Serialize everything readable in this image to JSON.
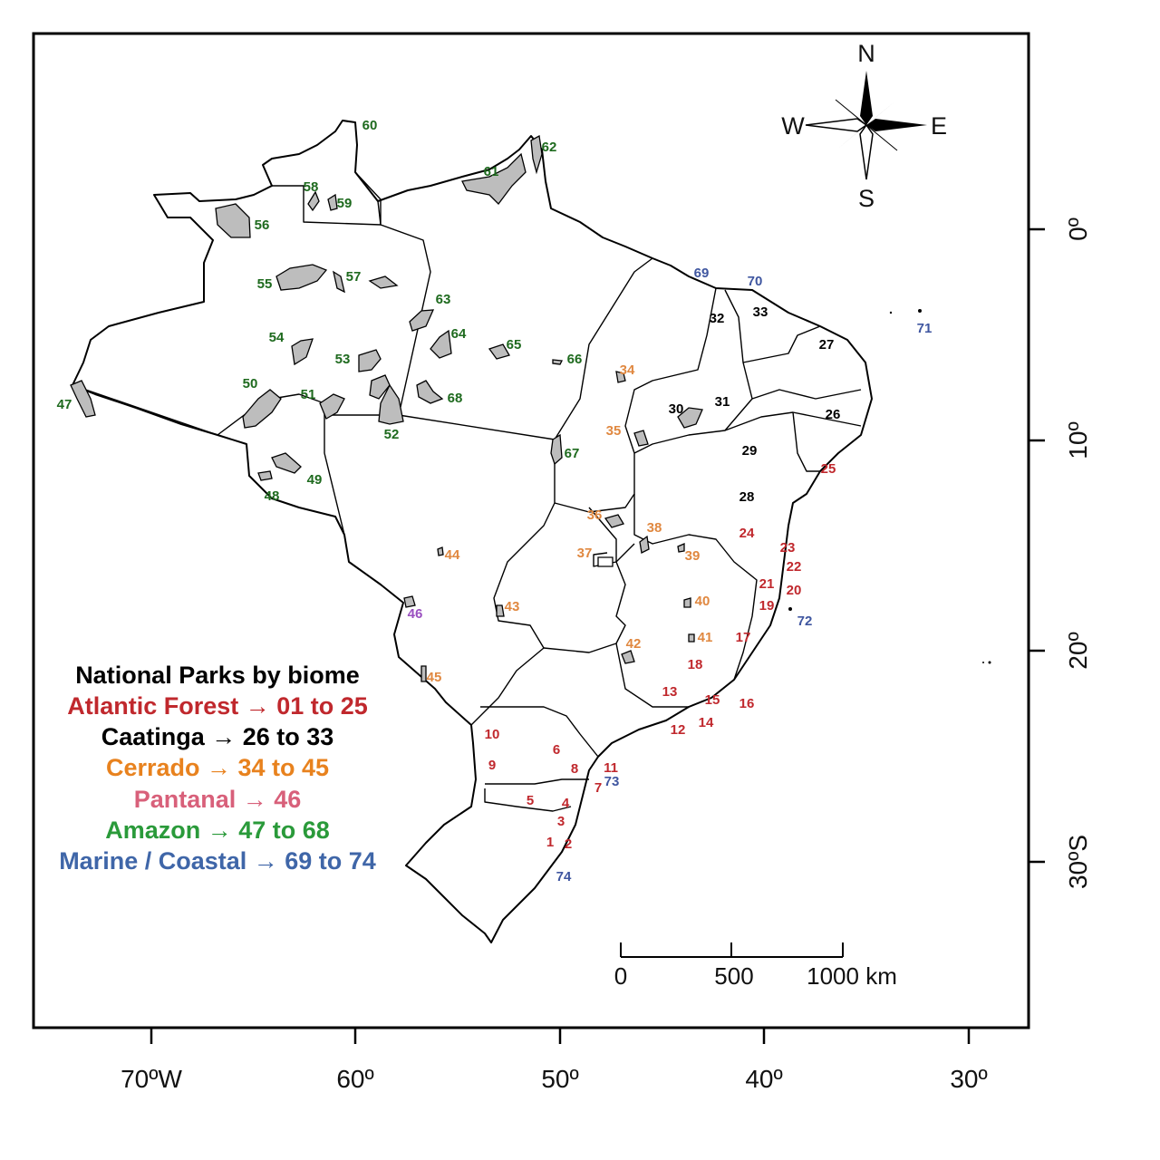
{
  "map": {
    "x_ticks": [
      "70ºW",
      "60º",
      "50º",
      "40º",
      "30º"
    ],
    "y_ticks": [
      "0º",
      "10º",
      "20º",
      "30ºS"
    ],
    "compass": {
      "n": "N",
      "s": "S",
      "e": "E",
      "w": "W"
    },
    "scale": {
      "labels": [
        "0",
        "500",
        "1000 km"
      ]
    },
    "legend": {
      "title": "National Parks by biome",
      "entries": [
        {
          "text": "Atlantic Forest → 01 to 25",
          "color": "#c0282d"
        },
        {
          "text": "Caatinga → 26 to 33",
          "color": "#000000"
        },
        {
          "text": "Cerrado → 34 to 45",
          "color": "#e8821e"
        },
        {
          "text": "Pantanal → 46",
          "color": "#d8607a"
        },
        {
          "text": "Amazon → 47 to 68",
          "color": "#2a9a3a"
        },
        {
          "text": "Marine / Coastal → 69 to 74",
          "color": "#3f66a8"
        }
      ]
    },
    "label_colors": {
      "atlantic": "#c0282d",
      "caatinga": "#000000",
      "cerrado": "#e08840",
      "pantanal": "#9a4fc0",
      "amazon": "#1e6a1e",
      "marine": "#3f56a0"
    },
    "parks": [
      {
        "n": "1",
        "b": "atlantic"
      },
      {
        "n": "2",
        "b": "atlantic"
      },
      {
        "n": "3",
        "b": "atlantic"
      },
      {
        "n": "4",
        "b": "atlantic"
      },
      {
        "n": "5",
        "b": "atlantic"
      },
      {
        "n": "6",
        "b": "atlantic"
      },
      {
        "n": "7",
        "b": "atlantic"
      },
      {
        "n": "8",
        "b": "atlantic"
      },
      {
        "n": "9",
        "b": "atlantic"
      },
      {
        "n": "10",
        "b": "atlantic"
      },
      {
        "n": "11",
        "b": "atlantic"
      },
      {
        "n": "12",
        "b": "atlantic"
      },
      {
        "n": "13",
        "b": "atlantic"
      },
      {
        "n": "14",
        "b": "atlantic"
      },
      {
        "n": "15",
        "b": "atlantic"
      },
      {
        "n": "16",
        "b": "atlantic"
      },
      {
        "n": "17",
        "b": "atlantic"
      },
      {
        "n": "18",
        "b": "atlantic"
      },
      {
        "n": "19",
        "b": "atlantic"
      },
      {
        "n": "20",
        "b": "atlantic"
      },
      {
        "n": "21",
        "b": "atlantic"
      },
      {
        "n": "22",
        "b": "atlantic"
      },
      {
        "n": "23",
        "b": "atlantic"
      },
      {
        "n": "24",
        "b": "atlantic"
      },
      {
        "n": "25",
        "b": "atlantic"
      },
      {
        "n": "26",
        "b": "caatinga"
      },
      {
        "n": "27",
        "b": "caatinga"
      },
      {
        "n": "28",
        "b": "caatinga"
      },
      {
        "n": "29",
        "b": "caatinga"
      },
      {
        "n": "30",
        "b": "caatinga"
      },
      {
        "n": "31",
        "b": "caatinga"
      },
      {
        "n": "32",
        "b": "caatinga"
      },
      {
        "n": "33",
        "b": "caatinga"
      },
      {
        "n": "34",
        "b": "cerrado"
      },
      {
        "n": "35",
        "b": "cerrado"
      },
      {
        "n": "36",
        "b": "cerrado"
      },
      {
        "n": "37",
        "b": "cerrado"
      },
      {
        "n": "38",
        "b": "cerrado"
      },
      {
        "n": "39",
        "b": "cerrado"
      },
      {
        "n": "40",
        "b": "cerrado"
      },
      {
        "n": "41",
        "b": "cerrado"
      },
      {
        "n": "42",
        "b": "cerrado"
      },
      {
        "n": "43",
        "b": "cerrado"
      },
      {
        "n": "44",
        "b": "cerrado"
      },
      {
        "n": "45",
        "b": "cerrado"
      },
      {
        "n": "46",
        "b": "pantanal"
      },
      {
        "n": "47",
        "b": "amazon"
      },
      {
        "n": "48",
        "b": "amazon"
      },
      {
        "n": "49",
        "b": "amazon"
      },
      {
        "n": "50",
        "b": "amazon"
      },
      {
        "n": "51",
        "b": "amazon"
      },
      {
        "n": "52",
        "b": "amazon"
      },
      {
        "n": "53",
        "b": "amazon"
      },
      {
        "n": "54",
        "b": "amazon"
      },
      {
        "n": "55",
        "b": "amazon"
      },
      {
        "n": "56",
        "b": "amazon"
      },
      {
        "n": "57",
        "b": "amazon"
      },
      {
        "n": "58",
        "b": "amazon"
      },
      {
        "n": "59",
        "b": "amazon"
      },
      {
        "n": "60",
        "b": "amazon"
      },
      {
        "n": "61",
        "b": "amazon"
      },
      {
        "n": "62",
        "b": "amazon"
      },
      {
        "n": "63",
        "b": "amazon"
      },
      {
        "n": "64",
        "b": "amazon"
      },
      {
        "n": "65",
        "b": "amazon"
      },
      {
        "n": "66",
        "b": "amazon"
      },
      {
        "n": "67",
        "b": "amazon"
      },
      {
        "n": "68",
        "b": "amazon"
      },
      {
        "n": "69",
        "b": "marine"
      },
      {
        "n": "70",
        "b": "marine"
      },
      {
        "n": "71",
        "b": "marine"
      },
      {
        "n": "72",
        "b": "marine"
      },
      {
        "n": "73",
        "b": "marine"
      },
      {
        "n": "74",
        "b": "marine"
      }
    ]
  }
}
